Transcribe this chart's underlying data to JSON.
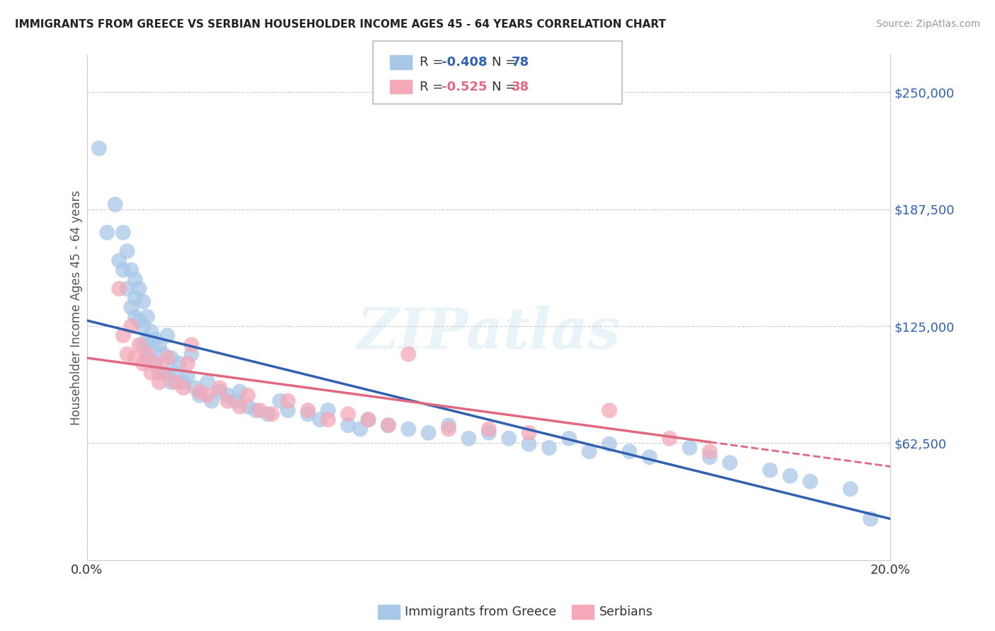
{
  "title": "IMMIGRANTS FROM GREECE VS SERBIAN HOUSEHOLDER INCOME AGES 45 - 64 YEARS CORRELATION CHART",
  "source": "Source: ZipAtlas.com",
  "ylabel": "Householder Income Ages 45 - 64 years",
  "xlim": [
    0.0,
    0.2
  ],
  "ylim": [
    0,
    270000
  ],
  "ytick_positions": [
    0,
    62500,
    125000,
    187500,
    250000
  ],
  "ytick_labels": [
    "",
    "$62,500",
    "$125,000",
    "$187,500",
    "$250,000"
  ],
  "grid_color": "#cccccc",
  "background_color": "#ffffff",
  "series1_color": "#a8c8e8",
  "series2_color": "#f4a8b8",
  "series1_line_color": "#3060b0",
  "series2_line_color": "#e06880",
  "series1_label": "Immigrants from Greece",
  "series2_label": "Serbians",
  "legend_R1": "-0.408",
  "legend_N1": "78",
  "legend_R2": "-0.525",
  "legend_N2": "38",
  "scatter1_x": [
    0.003,
    0.005,
    0.007,
    0.008,
    0.009,
    0.009,
    0.01,
    0.01,
    0.011,
    0.011,
    0.012,
    0.012,
    0.012,
    0.013,
    0.013,
    0.014,
    0.014,
    0.014,
    0.015,
    0.015,
    0.015,
    0.016,
    0.016,
    0.017,
    0.017,
    0.018,
    0.018,
    0.019,
    0.02,
    0.02,
    0.021,
    0.021,
    0.022,
    0.023,
    0.024,
    0.025,
    0.026,
    0.027,
    0.028,
    0.03,
    0.031,
    0.033,
    0.035,
    0.037,
    0.038,
    0.04,
    0.042,
    0.045,
    0.048,
    0.05,
    0.055,
    0.058,
    0.06,
    0.065,
    0.068,
    0.07,
    0.075,
    0.08,
    0.085,
    0.09,
    0.095,
    0.1,
    0.105,
    0.11,
    0.115,
    0.12,
    0.125,
    0.13,
    0.135,
    0.14,
    0.15,
    0.155,
    0.16,
    0.17,
    0.175,
    0.18,
    0.19,
    0.195
  ],
  "scatter1_y": [
    220000,
    175000,
    190000,
    160000,
    175000,
    155000,
    165000,
    145000,
    155000,
    135000,
    150000,
    140000,
    130000,
    145000,
    128000,
    138000,
    125000,
    115000,
    130000,
    118000,
    108000,
    122000,
    112000,
    118000,
    105000,
    115000,
    100000,
    110000,
    120000,
    100000,
    108000,
    95000,
    100000,
    105000,
    95000,
    98000,
    110000,
    92000,
    88000,
    95000,
    85000,
    90000,
    88000,
    85000,
    90000,
    82000,
    80000,
    78000,
    85000,
    80000,
    78000,
    75000,
    80000,
    72000,
    70000,
    75000,
    72000,
    70000,
    68000,
    72000,
    65000,
    68000,
    65000,
    62000,
    60000,
    65000,
    58000,
    62000,
    58000,
    55000,
    60000,
    55000,
    52000,
    48000,
    45000,
    42000,
    38000,
    22000
  ],
  "scatter2_x": [
    0.008,
    0.009,
    0.01,
    0.011,
    0.012,
    0.013,
    0.014,
    0.015,
    0.016,
    0.017,
    0.018,
    0.019,
    0.02,
    0.022,
    0.024,
    0.025,
    0.026,
    0.028,
    0.03,
    0.033,
    0.035,
    0.038,
    0.04,
    0.043,
    0.046,
    0.05,
    0.055,
    0.06,
    0.065,
    0.07,
    0.075,
    0.08,
    0.09,
    0.1,
    0.11,
    0.13,
    0.145,
    0.155
  ],
  "scatter2_y": [
    145000,
    120000,
    110000,
    125000,
    108000,
    115000,
    105000,
    110000,
    100000,
    105000,
    95000,
    100000,
    108000,
    95000,
    92000,
    105000,
    115000,
    90000,
    88000,
    92000,
    85000,
    82000,
    88000,
    80000,
    78000,
    85000,
    80000,
    75000,
    78000,
    75000,
    72000,
    110000,
    70000,
    70000,
    68000,
    80000,
    65000,
    58000
  ],
  "line1_x0": 0.0,
  "line1_y0": 128000,
  "line1_x1": 0.2,
  "line1_y1": 22000,
  "line2_x0": 0.0,
  "line2_y0": 108000,
  "line2_x1": 0.2,
  "line2_y1": 50000
}
